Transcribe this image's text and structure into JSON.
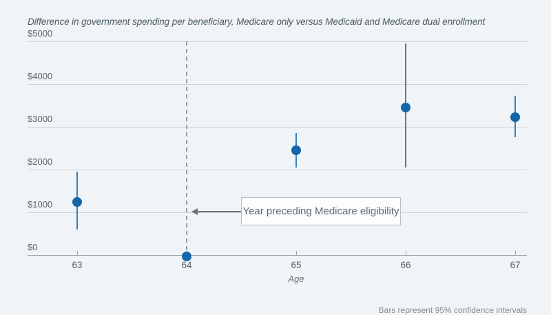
{
  "chart_data": {
    "type": "scatter",
    "title": "Difference in government spending per beneficiary, Medicare only versus Medicaid and Medicare dual enrollment",
    "xlabel": "Age",
    "ylabel": "",
    "x": [
      63,
      64,
      65,
      66,
      67
    ],
    "series": [
      {
        "name": "Difference in government spending per beneficiary",
        "values": [
          1250,
          -30,
          2450,
          3450,
          3225
        ],
        "ci_low": [
          600,
          -30,
          2050,
          2050,
          2750
        ],
        "ci_high": [
          1950,
          -30,
          2850,
          4950,
          3725
        ]
      }
    ],
    "ylim": [
      0,
      5000
    ],
    "ytick_values": [
      0,
      1000,
      2000,
      3000,
      4000,
      5000
    ],
    "ytick_labels": [
      "$0",
      "$1000",
      "$2000",
      "$3000",
      "$4000",
      "$5000"
    ],
    "xtick_labels": [
      "63",
      "64",
      "65",
      "66",
      "67"
    ],
    "grid": true,
    "legend": "none",
    "reference_line": {
      "x": 64,
      "style": "dashed"
    },
    "annotation": {
      "text": "Year preceding Medicare eligibility",
      "points_to_x": 64
    }
  },
  "note": "Bars represent 95% confidence intervals",
  "colors": {
    "background": "#f0f4f7",
    "point": "#1566a9",
    "ci_bar": "#3a80ba",
    "gridline": "#c9d3da",
    "axis": "#9aa6ae",
    "reference_line": "#939da4",
    "text": "#57646d",
    "title_text": "#4b5b66",
    "annotation_border": "#b4bec5"
  }
}
